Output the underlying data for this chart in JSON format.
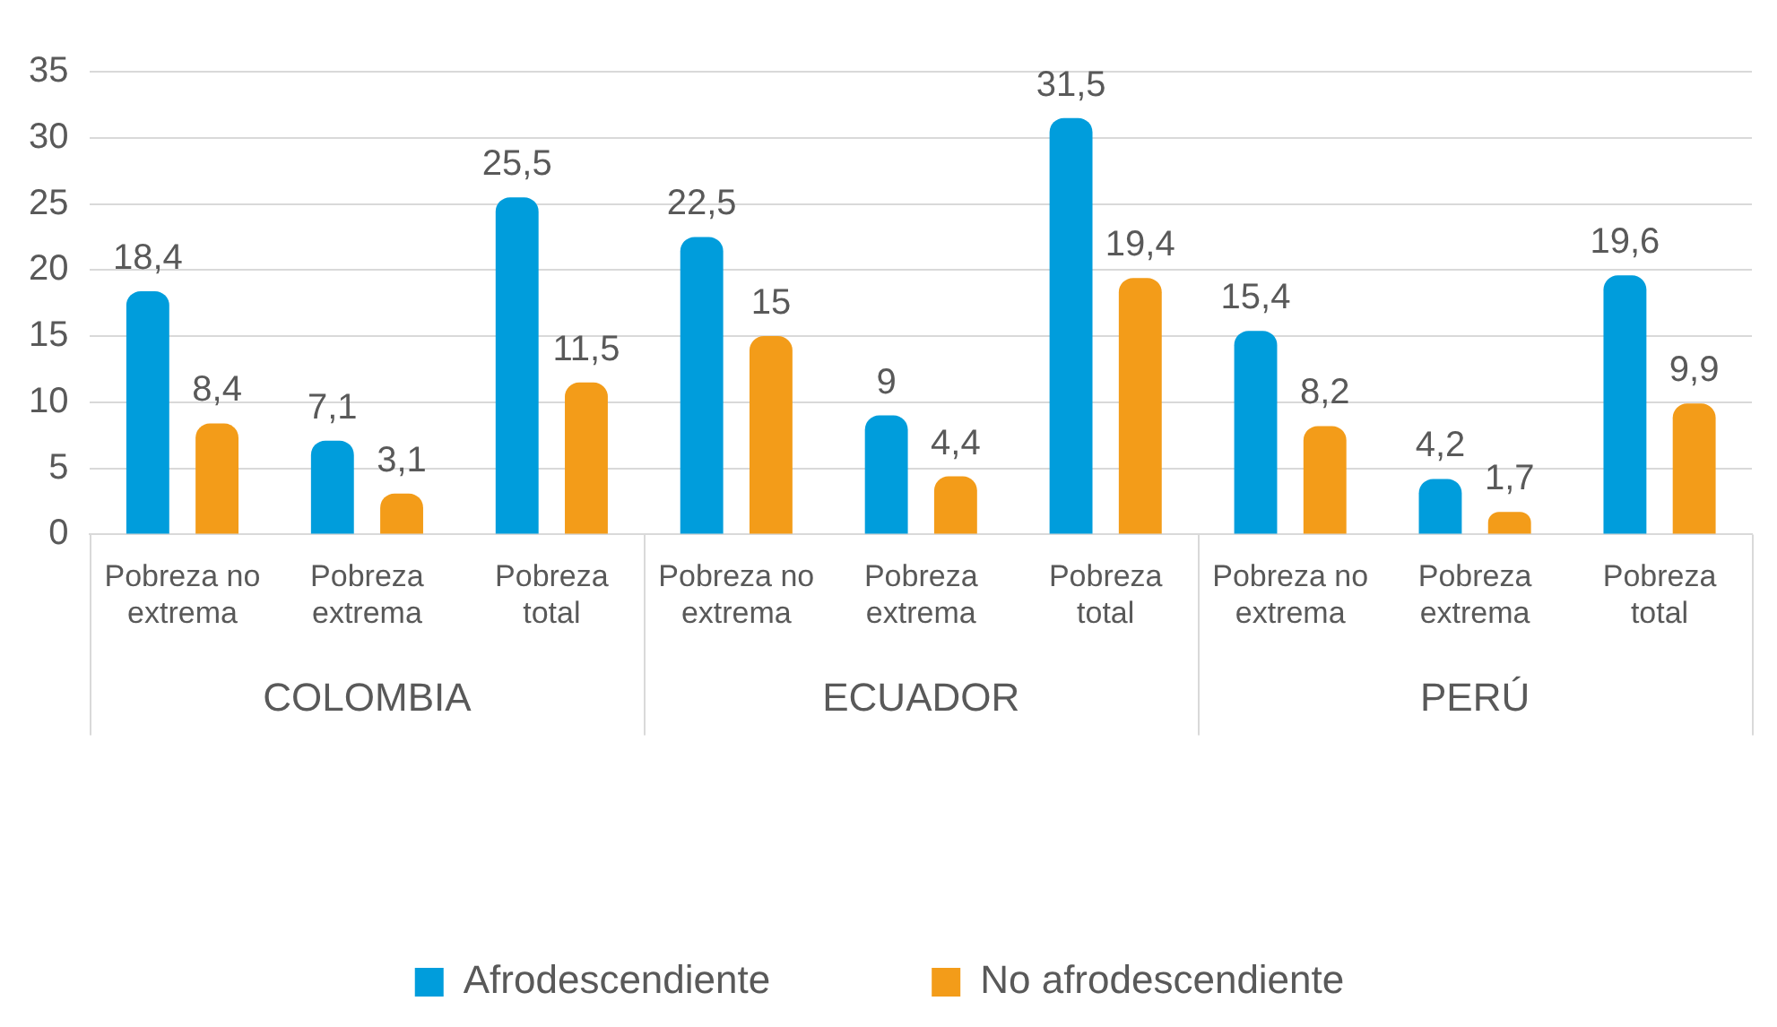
{
  "chart_data": {
    "type": "bar",
    "categories": [
      "Pobreza no extrema",
      "Pobreza extrema",
      "Pobreza total",
      "Pobreza no extrema",
      "Pobreza extrema",
      "Pobreza total",
      "Pobreza no extrema",
      "Pobreza extrema",
      "Pobreza total"
    ],
    "series": [
      {
        "name": "Afrodescendiente",
        "color": "#009ddc",
        "values": [
          18.4,
          7.1,
          25.5,
          22.5,
          9,
          31.5,
          15.4,
          4.2,
          19.6
        ],
        "value_labels": [
          "18,4",
          "7,1",
          "25,5",
          "22,5",
          "9",
          "31,5",
          "15,4",
          "4,2",
          "19,6"
        ]
      },
      {
        "name": "No afrodescendiente",
        "color": "#f39c19",
        "values": [
          8.4,
          3.1,
          11.5,
          15,
          4.4,
          19.4,
          8.2,
          1.7,
          9.9
        ],
        "value_labels": [
          "8,4",
          "3,1",
          "11,5",
          "15",
          "4,4",
          "19,4",
          "8,2",
          "1,7",
          "9,9"
        ]
      }
    ],
    "annotations": [
      "COLOMBIA",
      "ECUADOR",
      "PERÚ"
    ],
    "ylim": [
      0,
      35
    ],
    "yticks": [
      0,
      5,
      10,
      15,
      20,
      25,
      30,
      35
    ],
    "grid": "y",
    "legend": "bottom"
  }
}
